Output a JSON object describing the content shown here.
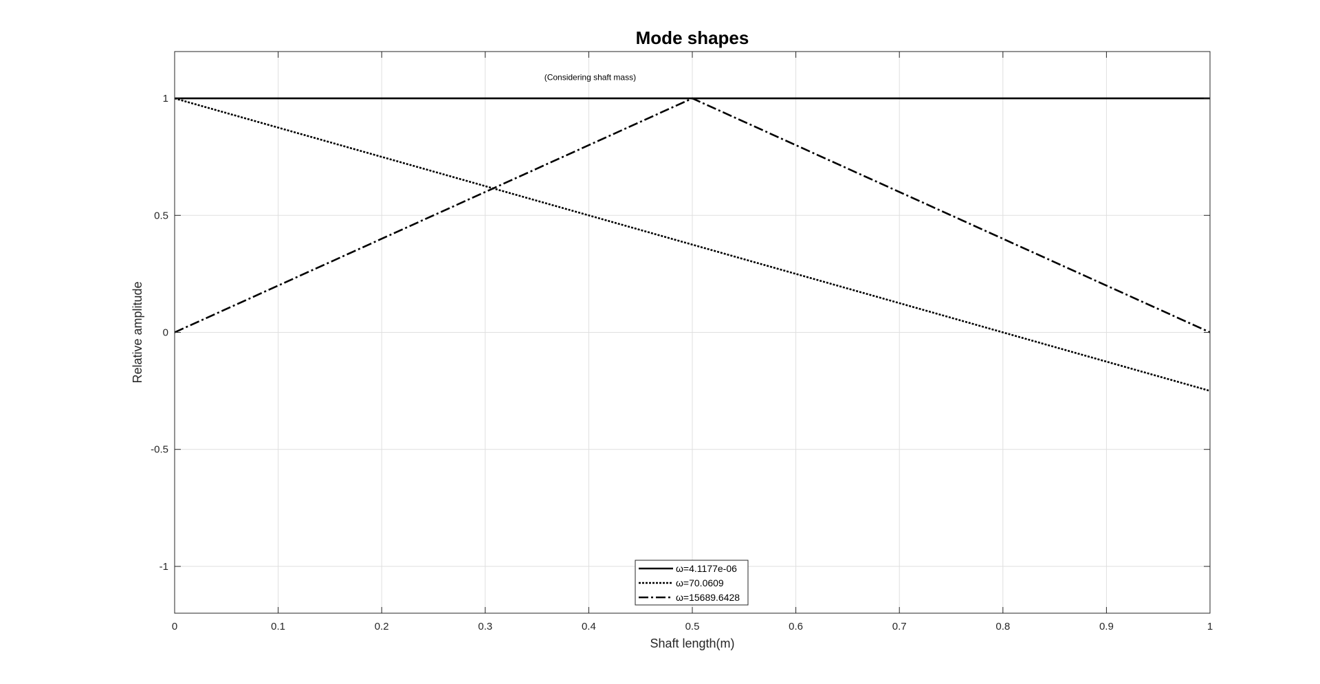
{
  "chart_data": {
    "type": "line",
    "title": "Mode shapes",
    "xlabel": "Shaft length(m)",
    "ylabel": "Relative amplitude",
    "xlim": [
      0,
      1
    ],
    "ylim": [
      -1.2,
      1.2
    ],
    "xticks": [
      0,
      0.1,
      0.2,
      0.3,
      0.4,
      0.5,
      0.6,
      0.7,
      0.8,
      0.9,
      1
    ],
    "xtick_labels": [
      "0",
      "0.1",
      "0.2",
      "0.3",
      "0.4",
      "0.5",
      "0.6",
      "0.7",
      "0.8",
      "0.9",
      "1"
    ],
    "yticks": [
      -1,
      -0.5,
      0,
      0.5,
      1
    ],
    "ytick_labels": [
      "-1",
      "-0.5",
      "0",
      "0.5",
      "1"
    ],
    "grid": true,
    "legend_position": "bottom-center",
    "annotation": {
      "text": "(Considering shaft mass)",
      "x": 0.4,
      "y": 1.09
    },
    "series": [
      {
        "name": "ω=4.1177e-06",
        "style": "solid",
        "color": "#000000",
        "x": [
          0,
          0.5,
          1
        ],
        "y": [
          1,
          1,
          1
        ]
      },
      {
        "name": "ω=70.0609",
        "style": "dotted",
        "color": "#000000",
        "x": [
          0,
          0.5,
          1
        ],
        "y": [
          1,
          0.375,
          -0.25
        ]
      },
      {
        "name": "ω=15689.6428",
        "style": "dashdot",
        "color": "#000000",
        "x": [
          0,
          0.5,
          1
        ],
        "y": [
          0,
          1,
          0
        ]
      }
    ]
  }
}
